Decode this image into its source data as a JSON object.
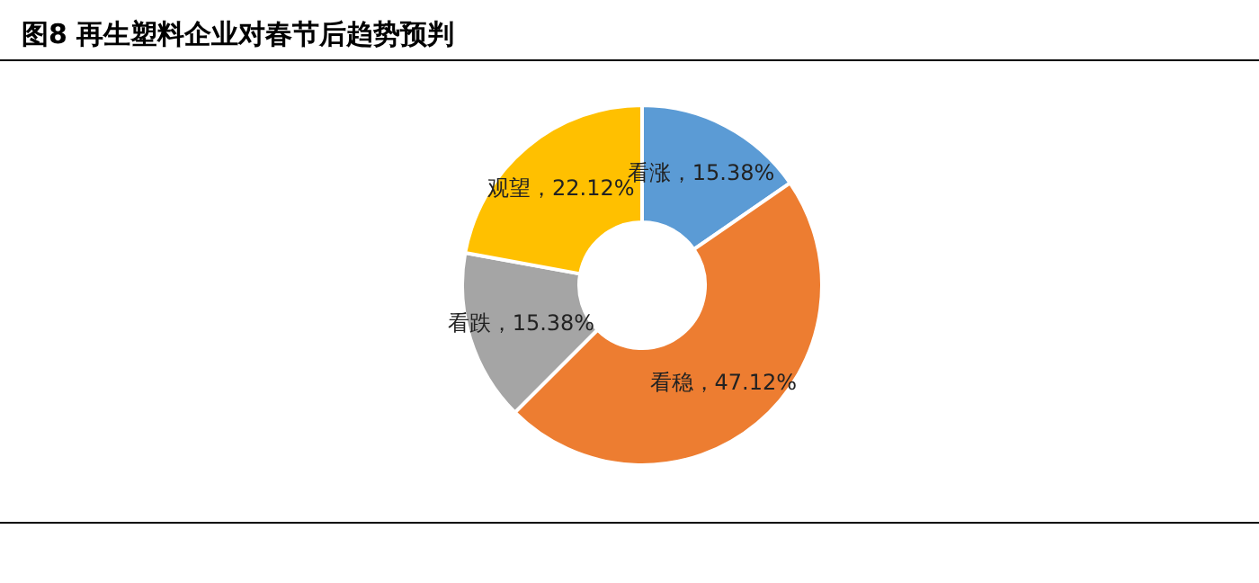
{
  "chart_data": {
    "type": "donut",
    "title": "图8 再生塑料企业对春节后趋势预判",
    "categories": [
      "看涨",
      "看稳",
      "看跌",
      "观望"
    ],
    "values": [
      15.38,
      47.12,
      15.38,
      22.12
    ],
    "colors": [
      "#5b9bd5",
      "#ed7d31",
      "#a5a5a5",
      "#ffc000"
    ],
    "value_labels": [
      "15.38%",
      "47.12%",
      "15.38%",
      "22.12%"
    ],
    "legend": false
  }
}
